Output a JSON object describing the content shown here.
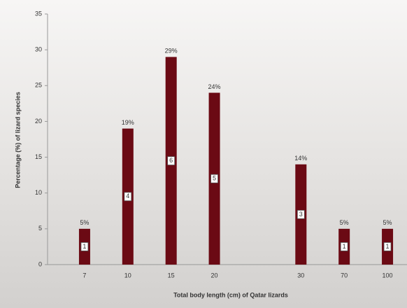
{
  "chart_data": {
    "type": "bar",
    "x_label": "Total body length (cm) of Qatar lizards",
    "y_label": "Percentage (%) of lizard species",
    "categories": [
      "7",
      "10",
      "15",
      "20",
      null,
      "30",
      "70",
      "100"
    ],
    "values": [
      5,
      19,
      29,
      24,
      null,
      14,
      5,
      5
    ],
    "value_labels": [
      "5%",
      "19%",
      "29%",
      "24%",
      null,
      "14%",
      "5%",
      "5%"
    ],
    "counts": [
      1,
      4,
      6,
      5,
      null,
      3,
      1,
      1
    ],
    "color": "#6b0a14",
    "ylim": [
      0,
      35
    ],
    "yticks": [
      0,
      5,
      10,
      15,
      20,
      25,
      30,
      35
    ]
  }
}
